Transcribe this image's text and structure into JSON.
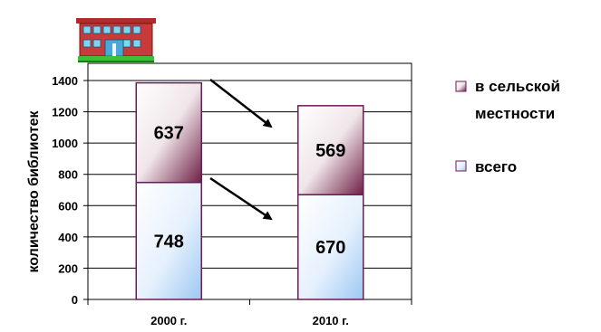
{
  "chart_data": {
    "type": "bar",
    "stacked": true,
    "categories": [
      "2000 г.",
      "2010 г."
    ],
    "series": [
      {
        "name": "всего",
        "values": [
          748,
          670
        ],
        "color": "#cfe4fb"
      },
      {
        "name": "в сельской местности",
        "values": [
          637,
          569
        ],
        "color": "#8b3a5c"
      }
    ],
    "xlabel": "",
    "ylabel": "количество библиотек",
    "ylim": [
      0,
      1400
    ],
    "yticks": [
      0,
      200,
      400,
      600,
      800,
      1000,
      1200,
      1400
    ],
    "grid": true,
    "legend_position": "right",
    "legend_order": [
      "в сельской местности",
      "всего"
    ],
    "legend_lines": [
      [
        "в сельской",
        "местности"
      ],
      [
        "всего"
      ]
    ],
    "annotations": [
      "downward arrows between 2000 and 2010 segments"
    ],
    "icon": "library-building-icon",
    "colors": {
      "bar_border": "#6b1a5a",
      "axis": "#000000",
      "grid": "#000000",
      "arrow": "#000000"
    }
  }
}
